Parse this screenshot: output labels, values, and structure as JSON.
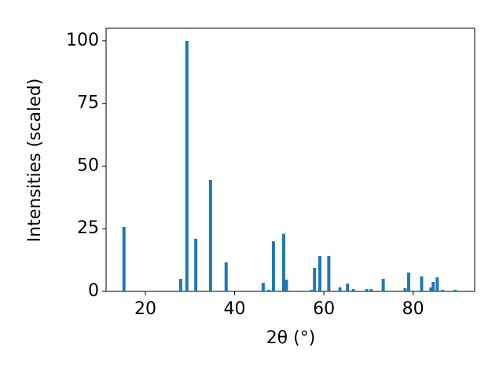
{
  "chart_data": {
    "type": "bar",
    "x_label": "2θ (°)",
    "y_label": "Intensities (scaled)",
    "x": [
      15.2,
      27.9,
      29.3,
      31.3,
      34.6,
      38.1,
      46.4,
      47.7,
      48.7,
      51.0,
      51.6,
      57.2,
      57.9,
      59.1,
      61.1,
      63.6,
      65.3,
      66.6,
      69.6,
      70.6,
      73.3,
      78.2,
      79.0,
      81.9,
      84.0,
      84.5,
      85.4,
      86.6,
      89.4
    ],
    "values": [
      25.7,
      5.0,
      100,
      21,
      44.5,
      11.6,
      3.4,
      0.6,
      20,
      23,
      4.7,
      0.6,
      9.4,
      14.1,
      14.1,
      1.6,
      3.1,
      0.9,
      0.9,
      0.9,
      5.0,
      1.3,
      7.5,
      6.0,
      1.6,
      3.8,
      5.6,
      0.6,
      0.6
    ],
    "bar_width": 0.7,
    "color": "#1f77b4",
    "xlim": [
      11.2,
      93.8
    ],
    "ylim": [
      0,
      105
    ],
    "xticks": [
      20,
      40,
      60,
      80
    ],
    "yticks": [
      0,
      25,
      50,
      75,
      100
    ]
  }
}
